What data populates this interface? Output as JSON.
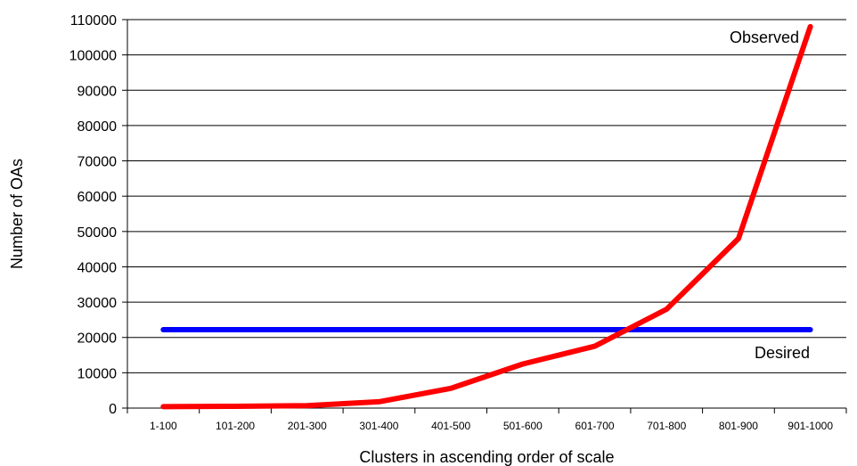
{
  "chart_data": {
    "type": "line",
    "title": "",
    "xlabel": "Clusters in ascending order of scale",
    "ylabel": "Number of OAs",
    "categories": [
      "1-100",
      "101-200",
      "201-300",
      "301-400",
      "401-500",
      "501-600",
      "601-700",
      "701-800",
      "801-900",
      "901-1000"
    ],
    "ylim": [
      0,
      110000
    ],
    "yticks": [
      0,
      10000,
      20000,
      30000,
      40000,
      50000,
      60000,
      70000,
      80000,
      90000,
      100000,
      110000
    ],
    "ytick_labels": [
      "0",
      "10000",
      "20000",
      "30000",
      "40000",
      "50000",
      "60000",
      "70000",
      "80000",
      "90000",
      "100000",
      "110000"
    ],
    "grid": true,
    "series": [
      {
        "name": "Observed",
        "color": "#ff0000",
        "values": [
          400,
          500,
          700,
          1800,
          5600,
          12500,
          17500,
          28000,
          48000,
          108000
        ]
      },
      {
        "name": "Desired",
        "color": "#0000ff",
        "values": [
          22200,
          22200,
          22200,
          22200,
          22200,
          22200,
          22200,
          22200,
          22200,
          22200
        ]
      }
    ]
  }
}
